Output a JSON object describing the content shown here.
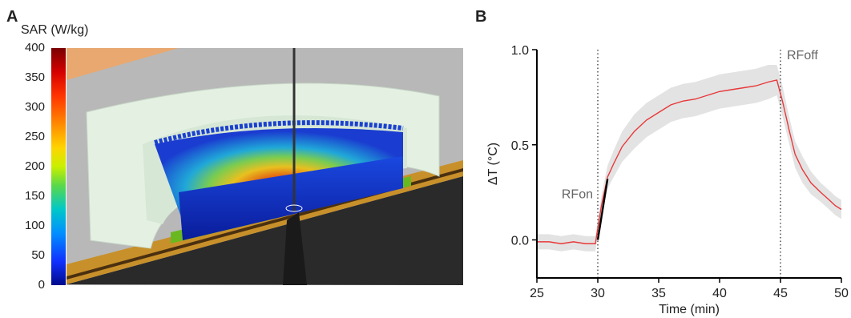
{
  "panels": {
    "a_label": "A",
    "b_label": "B"
  },
  "panel_a": {
    "colorbar_title": "SAR (W/kg)",
    "colorbar_ticks": [
      "400",
      "350",
      "300",
      "250",
      "200",
      "150",
      "100",
      "50",
      "0"
    ],
    "colorbar_range": [
      0,
      400
    ]
  },
  "chart_data": {
    "type": "line",
    "xlabel": "Time (min)",
    "ylabel": "ΔT (°C)",
    "xlim": [
      25,
      50
    ],
    "ylim": [
      -0.2,
      1.0
    ],
    "xticks": [
      25,
      30,
      35,
      40,
      45,
      50
    ],
    "yticks": [
      0.0,
      0.5,
      1.0
    ],
    "xtick_labels": [
      "25",
      "30",
      "35",
      "40",
      "45",
      "50"
    ],
    "ytick_labels": [
      "0.0",
      "0.5",
      "1.0"
    ],
    "grid": false,
    "annotations": [
      {
        "text": "RFon",
        "x": 30
      },
      {
        "text": "RFoff",
        "x": 45
      }
    ],
    "vlines": [
      30,
      45
    ],
    "colors": {
      "mean": "#e8383a",
      "band": "#e3e3e3",
      "fit": "#000000"
    },
    "series": [
      {
        "x": [
          25,
          26,
          27,
          28,
          29,
          29.8,
          30.3,
          30.8,
          31.3,
          32,
          33,
          34,
          35,
          36,
          37,
          38,
          39,
          40,
          41,
          42,
          43,
          44,
          44.7,
          45.2,
          45.7,
          46.2,
          46.8,
          47.5,
          48.3,
          49,
          49.5,
          50
        ],
        "y": [
          -0.01,
          -0.01,
          -0.02,
          -0.01,
          -0.02,
          -0.02,
          0.18,
          0.33,
          0.4,
          0.49,
          0.57,
          0.63,
          0.67,
          0.71,
          0.73,
          0.74,
          0.76,
          0.78,
          0.79,
          0.8,
          0.81,
          0.83,
          0.84,
          0.72,
          0.58,
          0.45,
          0.37,
          0.3,
          0.25,
          0.21,
          0.18,
          0.16
        ],
        "band_halfwidth": [
          0.04,
          0.04,
          0.04,
          0.04,
          0.04,
          0.04,
          0.05,
          0.06,
          0.07,
          0.08,
          0.09,
          0.09,
          0.09,
          0.09,
          0.09,
          0.09,
          0.09,
          0.09,
          0.09,
          0.09,
          0.09,
          0.09,
          0.08,
          0.08,
          0.07,
          0.07,
          0.07,
          0.06,
          0.05,
          0.05,
          0.05,
          0.05
        ]
      },
      {
        "x": [
          30.0,
          30.8
        ],
        "y": [
          0.0,
          0.32
        ]
      }
    ]
  }
}
